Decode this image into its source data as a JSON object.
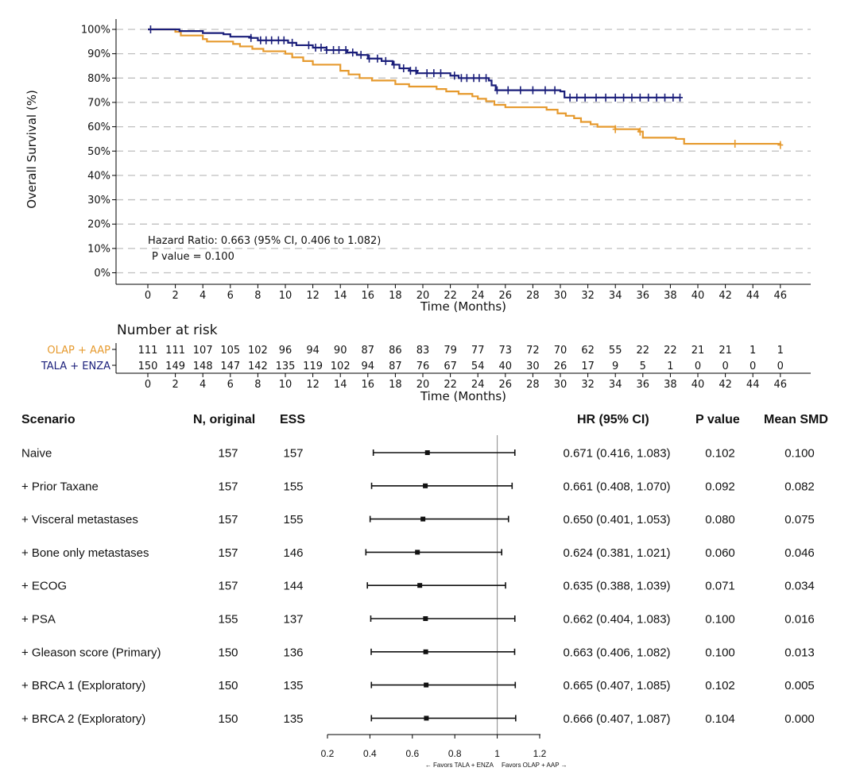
{
  "colors": {
    "olap_aap": "#E69A2E",
    "tala_enza": "#1A1E7A",
    "grid": "#BFBFBF",
    "text": "#111111"
  },
  "km": {
    "ylabel": "Overall Survival (%)",
    "xlabel": "Time (Months)",
    "hazard_ratio_text": "Hazard Ratio: 0.663 (95% CI, 0.406 to 1.082)",
    "p_value_text": "P value =  0.100",
    "number_at_risk_title": "Number at risk",
    "risk_xlabel": "Time (Months)"
  },
  "chart_data": [
    {
      "type": "line",
      "subtype": "kaplan-meier",
      "xlabel": "Time (Months)",
      "ylabel": "Overall Survival (%)",
      "xlim": [
        0,
        46
      ],
      "ylim": [
        0,
        100
      ],
      "x_ticks": [
        "0",
        "2",
        "4",
        "6",
        "8",
        "10",
        "12",
        "14",
        "16",
        "18",
        "20",
        "22",
        "24",
        "26",
        "28",
        "30",
        "32",
        "34",
        "36",
        "38",
        "40",
        "42",
        "44",
        "46"
      ],
      "y_ticks": [
        "0%",
        "10%",
        "20%",
        "30%",
        "40%",
        "50%",
        "60%",
        "70%",
        "80%",
        "90%",
        "100%"
      ],
      "grid": "horizontal dashed",
      "series": [
        {
          "name": "OLAP + AAP",
          "color": "#E69A2E",
          "steps": [
            [
              0,
              100
            ],
            [
              2,
              99
            ],
            [
              2.4,
              97.5
            ],
            [
              4,
              96
            ],
            [
              4.3,
              95
            ],
            [
              6.2,
              94
            ],
            [
              6.7,
              93
            ],
            [
              7.6,
              92
            ],
            [
              8.4,
              91
            ],
            [
              10,
              90
            ],
            [
              10.5,
              88.5
            ],
            [
              11.3,
              87
            ],
            [
              12,
              85.5
            ],
            [
              14,
              83
            ],
            [
              14.6,
              81.5
            ],
            [
              15.4,
              80
            ],
            [
              16.3,
              79
            ],
            [
              18,
              77.5
            ],
            [
              19,
              76.5
            ],
            [
              21,
              75.5
            ],
            [
              21.7,
              74.5
            ],
            [
              22.6,
              73.5
            ],
            [
              23.6,
              72.5
            ],
            [
              24,
              71.5
            ],
            [
              24.6,
              70.5
            ],
            [
              25.2,
              69
            ],
            [
              26,
              68
            ],
            [
              29,
              67
            ],
            [
              29.8,
              65.5
            ],
            [
              30.4,
              64.5
            ],
            [
              31,
              63.5
            ],
            [
              31.5,
              62
            ],
            [
              32.2,
              61
            ],
            [
              32.7,
              60
            ],
            [
              34,
              59
            ],
            [
              35.7,
              58
            ],
            [
              36,
              55.5
            ],
            [
              38.4,
              55
            ],
            [
              39,
              53
            ],
            [
              46,
              52.5
            ]
          ],
          "censor": [
            34,
            35.8,
            42.7,
            46
          ]
        },
        {
          "name": "TALA + ENZA",
          "color": "#1A1E7A",
          "steps": [
            [
              0,
              100
            ],
            [
              1.5,
              100
            ],
            [
              2.3,
              99.3
            ],
            [
              4,
              98.5
            ],
            [
              5.5,
              98
            ],
            [
              6,
              97
            ],
            [
              7.5,
              96.5
            ],
            [
              8,
              95.5
            ],
            [
              10.2,
              94.5
            ],
            [
              10.8,
              93.5
            ],
            [
              12,
              92.5
            ],
            [
              13,
              91.5
            ],
            [
              14.5,
              90.5
            ],
            [
              15.2,
              89.5
            ],
            [
              16,
              88
            ],
            [
              17,
              87
            ],
            [
              17.8,
              85.5
            ],
            [
              18.3,
              84
            ],
            [
              19,
              83
            ],
            [
              19.6,
              82
            ],
            [
              22,
              81
            ],
            [
              22.6,
              80
            ],
            [
              24.8,
              79
            ],
            [
              25,
              77
            ],
            [
              25.3,
              75
            ],
            [
              30,
              74.5
            ],
            [
              30.3,
              72
            ],
            [
              38.7,
              72
            ]
          ],
          "censor": [
            0.2,
            7.5,
            8.2,
            8.6,
            9,
            9.5,
            9.9,
            10.5,
            11.7,
            12.2,
            12.6,
            13,
            13.5,
            13.9,
            14.4,
            14.9,
            15.5,
            16.1,
            16.7,
            17.3,
            17.9,
            18.6,
            19.1,
            19.5,
            20.3,
            20.8,
            21.3,
            22.3,
            22.8,
            23.2,
            23.7,
            24.1,
            24.6,
            25.4,
            26.2,
            27.1,
            28,
            28.9,
            29.6,
            30.7,
            31.2,
            31.8,
            32.6,
            33.3,
            34,
            34.6,
            35.2,
            35.8,
            36.4,
            37,
            37.6,
            38.2,
            38.7
          ]
        }
      ]
    },
    {
      "type": "table",
      "title": "Number at risk",
      "xlabel": "Time (Months)",
      "times": [
        "0",
        "2",
        "4",
        "6",
        "8",
        "10",
        "12",
        "14",
        "16",
        "18",
        "20",
        "22",
        "24",
        "26",
        "28",
        "30",
        "32",
        "34",
        "36",
        "38",
        "40",
        "42",
        "44",
        "46"
      ],
      "rows": [
        {
          "name": "OLAP + AAP",
          "color": "#E69A2E",
          "values": [
            "111",
            "111",
            "107",
            "105",
            "102",
            "96",
            "94",
            "90",
            "87",
            "86",
            "83",
            "79",
            "77",
            "73",
            "72",
            "70",
            "62",
            "55",
            "22",
            "22",
            "21",
            "21",
            "1",
            "1"
          ]
        },
        {
          "name": "TALA + ENZA",
          "color": "#1A1E7A",
          "values": [
            "150",
            "149",
            "148",
            "147",
            "142",
            "135",
            "119",
            "102",
            "94",
            "87",
            "76",
            "67",
            "54",
            "40",
            "30",
            "26",
            "17",
            "9",
            "5",
            "1",
            "0",
            "0",
            "0",
            "0"
          ]
        }
      ]
    },
    {
      "type": "forest",
      "xlim": [
        0.2,
        1.2
      ],
      "x_ticks": [
        "0.2",
        "0.4",
        "0.6",
        "0.8",
        "1",
        "1.2"
      ],
      "reference_line": 1,
      "favors_left": "← Favors TALA + ENZA",
      "favors_right": "Favors OLAP + AAP →",
      "headers": {
        "scenario": "Scenario",
        "n_original": "N, original",
        "ess": "ESS",
        "hr": "HR (95% CI)",
        "p": "P value",
        "smd": "Mean SMD"
      },
      "rows": [
        {
          "scenario": "Naive",
          "n": "157",
          "ess": "157",
          "hr_text": "0.671 (0.416, 1.083)",
          "p": "0.102",
          "smd": "0.100",
          "hr": 0.671,
          "lo": 0.416,
          "hi": 1.083
        },
        {
          "scenario": "+ Prior Taxane",
          "n": "157",
          "ess": "155",
          "hr_text": "0.661 (0.408, 1.070)",
          "p": "0.092",
          "smd": "0.082",
          "hr": 0.661,
          "lo": 0.408,
          "hi": 1.07
        },
        {
          "scenario": "+ Visceral metastases",
          "n": "157",
          "ess": "155",
          "hr_text": "0.650 (0.401, 1.053)",
          "p": "0.080",
          "smd": "0.075",
          "hr": 0.65,
          "lo": 0.401,
          "hi": 1.053
        },
        {
          "scenario": "+ Bone only metastases",
          "n": "157",
          "ess": "146",
          "hr_text": "0.624 (0.381, 1.021)",
          "p": "0.060",
          "smd": "0.046",
          "hr": 0.624,
          "lo": 0.381,
          "hi": 1.021
        },
        {
          "scenario": "+ ECOG",
          "n": "157",
          "ess": "144",
          "hr_text": "0.635 (0.388, 1.039)",
          "p": "0.071",
          "smd": "0.034",
          "hr": 0.635,
          "lo": 0.388,
          "hi": 1.039
        },
        {
          "scenario": "+ PSA",
          "n": "155",
          "ess": "137",
          "hr_text": "0.662 (0.404, 1.083)",
          "p": "0.100",
          "smd": "0.016",
          "hr": 0.662,
          "lo": 0.404,
          "hi": 1.083
        },
        {
          "scenario": "+ Gleason score (Primary)",
          "n": "150",
          "ess": "136",
          "hr_text": "0.663 (0.406, 1.082)",
          "p": "0.100",
          "smd": "0.013",
          "hr": 0.663,
          "lo": 0.406,
          "hi": 1.082
        },
        {
          "scenario": "+ BRCA 1 (Exploratory)",
          "n": "150",
          "ess": "135",
          "hr_text": "0.665 (0.407, 1.085)",
          "p": "0.102",
          "smd": "0.005",
          "hr": 0.665,
          "lo": 0.407,
          "hi": 1.085
        },
        {
          "scenario": "+ BRCA 2 (Exploratory)",
          "n": "150",
          "ess": "135",
          "hr_text": "0.666 (0.407, 1.087)",
          "p": "0.104",
          "smd": "0.000",
          "hr": 0.666,
          "lo": 0.407,
          "hi": 1.087
        }
      ]
    }
  ]
}
